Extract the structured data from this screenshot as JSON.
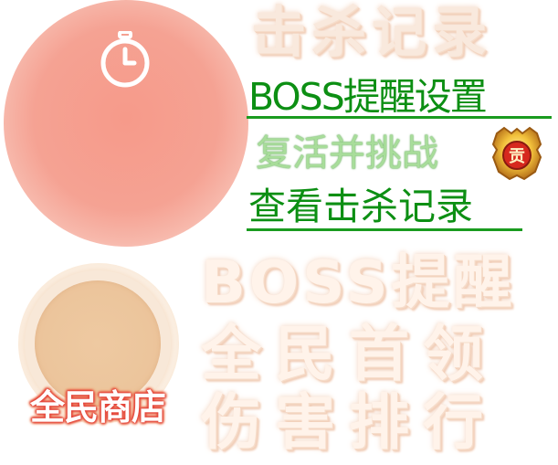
{
  "timer": {
    "icon": "clock-icon"
  },
  "titles": {
    "kill_record": "击杀记录",
    "boss_reminder": "BOSS提醒",
    "world_leader": "全民首领",
    "damage_rank": "伤害排行"
  },
  "menu": {
    "boss_settings": "BOSS提醒设置",
    "revive_challenge": "复活并挑战",
    "view_kill_record": "查看击杀记录"
  },
  "medal": {
    "icon": "medal-icon",
    "glyph": "贡"
  },
  "shop": {
    "label": "全民商店"
  },
  "colors": {
    "link_green": "#0c8f13",
    "timer_orb": "#f5a293",
    "shop_orb": "#ecc59c",
    "emboss_text": "#fff3ea"
  }
}
